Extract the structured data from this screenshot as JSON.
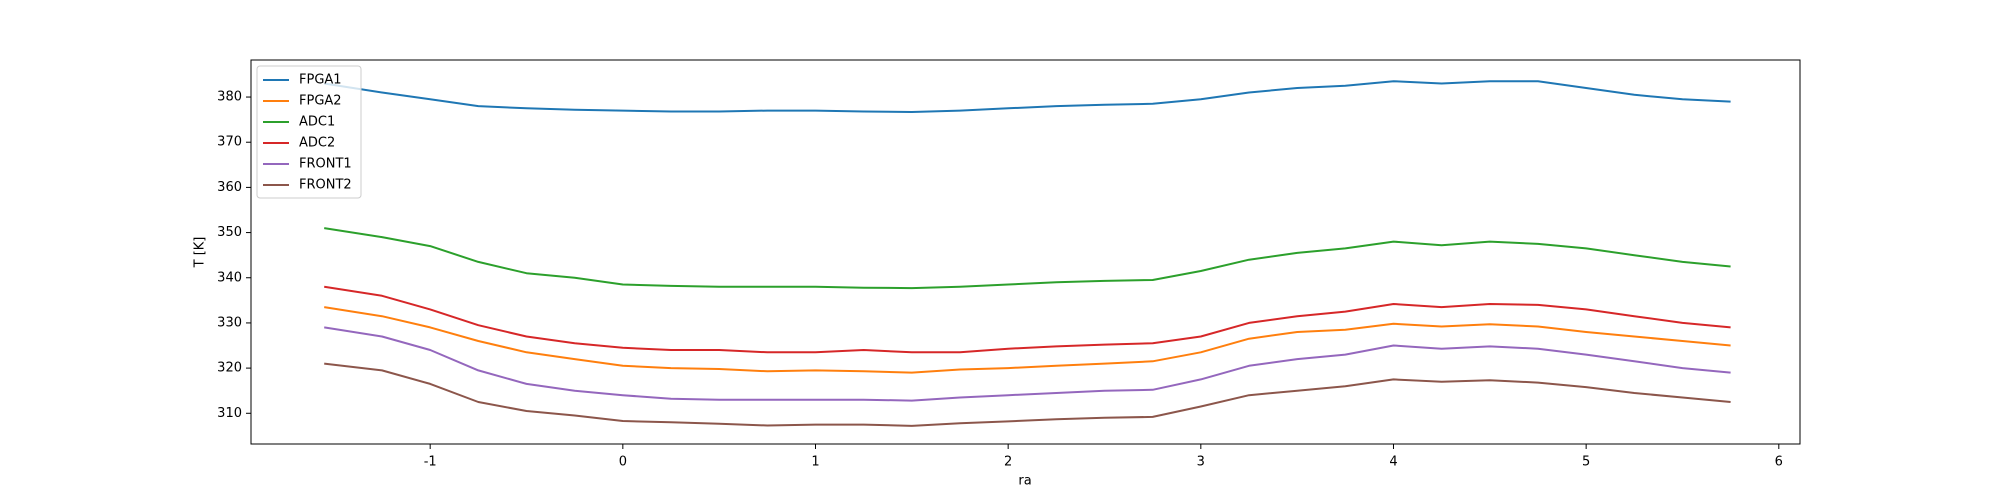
{
  "chart_data": {
    "type": "line",
    "x_label": "ra",
    "y_label": "T [K]",
    "x": [
      -1.55,
      -1.25,
      -1,
      -0.75,
      -0.5,
      -0.25,
      0,
      0.25,
      0.5,
      0.75,
      1,
      1.25,
      1.5,
      1.75,
      2,
      2.25,
      2.5,
      2.75,
      3,
      3.25,
      3.5,
      3.75,
      4,
      4.25,
      4.5,
      4.75,
      5,
      5.25,
      5.5,
      5.75
    ],
    "series": [
      {
        "name": "FPGA1",
        "color": "#1f77b4",
        "values": [
          383,
          381,
          379.5,
          378,
          377.5,
          377.2,
          377,
          376.8,
          376.8,
          377,
          377,
          376.8,
          376.7,
          377,
          377.5,
          378,
          378.3,
          378.5,
          379.5,
          381,
          382,
          382.5,
          383.5,
          383,
          383.5,
          383.5,
          382,
          380.5,
          379.5,
          379
        ]
      },
      {
        "name": "FPGA2",
        "color": "#ff7f0e",
        "values": [
          333.5,
          331.5,
          329,
          326,
          323.5,
          322,
          320.5,
          320,
          319.8,
          319.3,
          319.5,
          319.3,
          319,
          319.7,
          320,
          320.5,
          321,
          321.5,
          323.5,
          326.5,
          328,
          328.5,
          329.8,
          329.2,
          329.7,
          329.2,
          328,
          327,
          326,
          325
        ]
      },
      {
        "name": "ADC1",
        "color": "#2ca02c",
        "values": [
          351,
          349,
          347,
          343.5,
          341,
          340,
          338.5,
          338.2,
          338,
          338,
          338,
          337.8,
          337.7,
          338,
          338.5,
          339,
          339.3,
          339.5,
          341.5,
          344,
          345.5,
          346.5,
          348,
          347.2,
          348,
          347.5,
          346.5,
          345,
          343.5,
          342.5
        ]
      },
      {
        "name": "ADC2",
        "color": "#d62728",
        "values": [
          338,
          336,
          333,
          329.5,
          327,
          325.5,
          324.5,
          324,
          324,
          323.5,
          323.5,
          324,
          323.5,
          323.5,
          324.3,
          324.8,
          325.2,
          325.5,
          327,
          330,
          331.5,
          332.5,
          334.2,
          333.5,
          334.2,
          334,
          333,
          331.5,
          330,
          329
        ]
      },
      {
        "name": "FRONT1",
        "color": "#9467bd",
        "values": [
          329,
          327,
          324,
          319.5,
          316.5,
          315,
          314,
          313.2,
          313,
          313,
          313,
          313,
          312.8,
          313.5,
          314,
          314.5,
          315,
          315.2,
          317.5,
          320.5,
          322,
          323,
          325,
          324.3,
          324.8,
          324.3,
          323,
          321.5,
          320,
          319
        ]
      },
      {
        "name": "FRONT2",
        "color": "#8c564b",
        "values": [
          321,
          319.5,
          316.5,
          312.5,
          310.5,
          309.5,
          308.3,
          308,
          307.7,
          307.3,
          307.5,
          307.5,
          307.2,
          307.8,
          308.2,
          308.7,
          309,
          309.2,
          311.5,
          314,
          315,
          316,
          317.5,
          317,
          317.3,
          316.8,
          315.8,
          314.5,
          313.5,
          312.5
        ]
      }
    ],
    "xlim": [
      -1.93,
      6.11
    ],
    "ylim": [
      303.2,
      388.2
    ],
    "xticks": [
      -1,
      0,
      1,
      2,
      3,
      4,
      5,
      6
    ],
    "yticks": [
      310,
      320,
      330,
      340,
      350,
      360,
      370,
      380
    ],
    "legend": "upper left"
  }
}
